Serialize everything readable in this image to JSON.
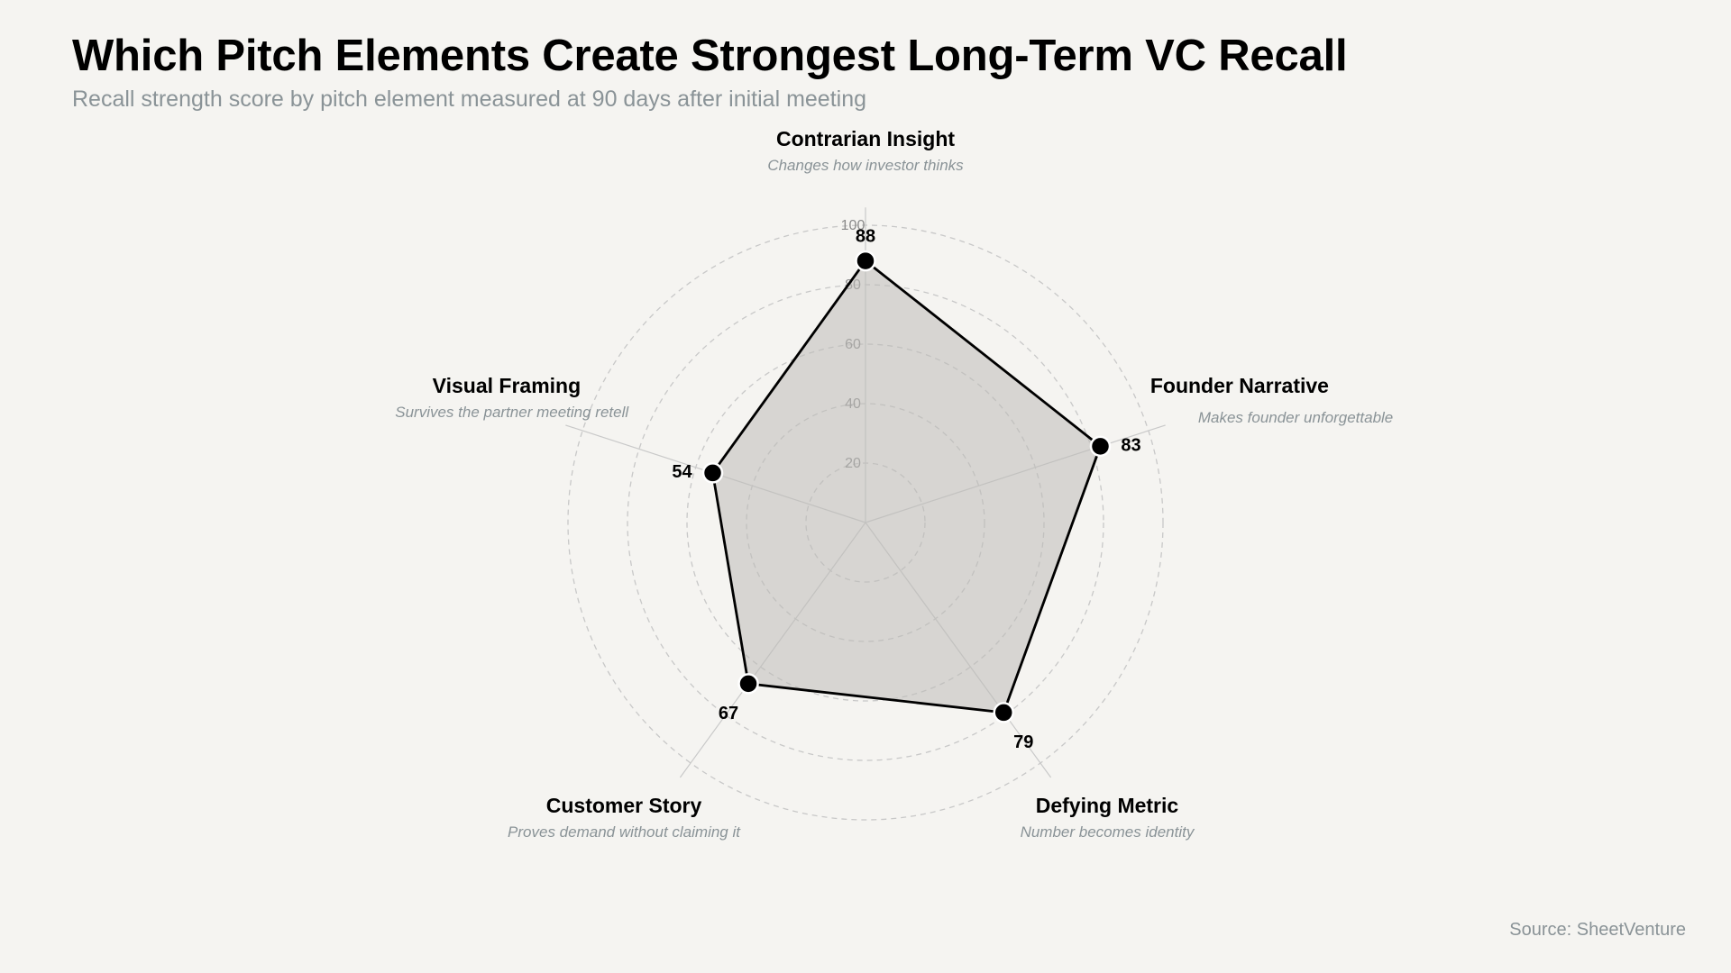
{
  "header": {
    "title": "Which Pitch Elements Create Strongest Long-Term VC Recall",
    "subtitle": "Recall strength score by pitch element measured at 90 days after initial meeting"
  },
  "footer": {
    "source": "Source: SheetVenture"
  },
  "colors": {
    "background": "#f5f4f1",
    "fill": "#bdbbb8",
    "line": "#000000",
    "grid": "#c8c8c8",
    "muted_text": "#8a9397"
  },
  "chart_data": {
    "type": "radar",
    "title": "Which Pitch Elements Create Strongest Long-Term VC Recall",
    "subtitle": "Recall strength score by pitch element measured at 90 days after initial meeting",
    "rlim": [
      0,
      100
    ],
    "ticks": [
      20,
      40,
      60,
      80,
      100
    ],
    "grid": true,
    "axes": [
      {
        "label": "Contrarian Insight",
        "description": "Changes how investor thinks",
        "value": 88
      },
      {
        "label": "Founder Narrative",
        "description": "Makes founder unforgettable",
        "value": 83
      },
      {
        "label": "Defying Metric",
        "description": "Number becomes identity",
        "value": 79
      },
      {
        "label": "Customer Story",
        "description": "Proves demand without claiming it",
        "value": 67
      },
      {
        "label": "Visual Framing",
        "description": "Survives the partner meeting retell",
        "value": 54
      }
    ]
  }
}
